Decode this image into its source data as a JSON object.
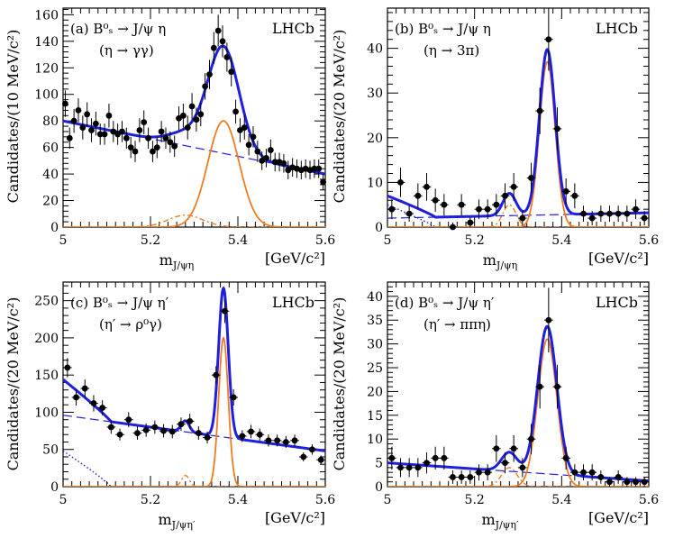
{
  "chart_data": [
    {
      "type": "scatter",
      "panel": "a",
      "tag": "(a)",
      "decay": "B⁰ₛ → J/ψ η",
      "subdecay": "(η → γγ)",
      "experiment": "LHCb",
      "ylabel": "Candidates/(10 MeV/c²)",
      "xlabel": "m_J/ψη",
      "xlabel_main": "m",
      "xlabel_sub": "J/ψη",
      "xunit": "[GeV/c²]",
      "xlim": [
        5.0,
        5.6
      ],
      "ylim": [
        0,
        165
      ],
      "xticks": [
        5,
        5.2,
        5.4,
        5.6
      ],
      "xtick_labels": [
        "5",
        "5.2",
        "5.4",
        "5.6"
      ],
      "yticks": [
        0,
        20,
        40,
        60,
        80,
        100,
        120,
        140,
        160
      ],
      "ytick_labels": [
        "0",
        "20",
        "40",
        "60",
        "80",
        "100",
        "120",
        "140",
        "160"
      ],
      "signal": {
        "mean": 5.367,
        "sigma": 0.036,
        "amp": 80
      },
      "background": {
        "start": 80,
        "end": 40
      },
      "bump": {
        "mean": 5.28,
        "sigma": 0.04,
        "amp": 9
      },
      "points": {
        "x": [
          5.005,
          5.015,
          5.025,
          5.035,
          5.045,
          5.055,
          5.065,
          5.075,
          5.085,
          5.095,
          5.105,
          5.115,
          5.125,
          5.135,
          5.145,
          5.155,
          5.165,
          5.175,
          5.185,
          5.195,
          5.205,
          5.215,
          5.225,
          5.235,
          5.245,
          5.255,
          5.265,
          5.275,
          5.285,
          5.295,
          5.305,
          5.315,
          5.325,
          5.335,
          5.345,
          5.355,
          5.365,
          5.375,
          5.385,
          5.395,
          5.405,
          5.415,
          5.425,
          5.435,
          5.445,
          5.455,
          5.465,
          5.475,
          5.485,
          5.495,
          5.505,
          5.515,
          5.525,
          5.535,
          5.545,
          5.555,
          5.565,
          5.575,
          5.585,
          5.595
        ],
        "y": [
          93,
          67,
          80,
          88,
          75,
          85,
          73,
          78,
          70,
          70,
          84,
          72,
          70,
          72,
          67,
          60,
          57,
          73,
          79,
          67,
          57,
          60,
          72,
          67,
          64,
          61,
          82,
          84,
          75,
          91,
          81,
          85,
          106,
          115,
          135,
          148,
          140,
          128,
          117,
          87,
          73,
          75,
          62,
          68,
          57,
          50,
          52,
          58,
          49,
          49,
          48,
          43,
          45,
          44,
          43,
          44,
          43,
          44,
          44,
          34
        ],
        "err": [
          10,
          8,
          9,
          9,
          9,
          9,
          9,
          9,
          8,
          8,
          9,
          8,
          8,
          8,
          8,
          8,
          8,
          9,
          9,
          8,
          8,
          8,
          8,
          8,
          8,
          8,
          9,
          9,
          9,
          10,
          9,
          9,
          10,
          11,
          12,
          12,
          12,
          11,
          11,
          9,
          9,
          9,
          8,
          8,
          8,
          7,
          7,
          8,
          7,
          7,
          7,
          7,
          7,
          7,
          7,
          7,
          7,
          7,
          7,
          6
        ]
      }
    },
    {
      "type": "scatter",
      "panel": "b",
      "tag": "(b)",
      "decay": "B⁰ₛ → J/ψ η",
      "subdecay": "(η → 3π)",
      "experiment": "LHCb",
      "ylabel": "Candidates/(20 MeV/c²)",
      "xlabel": "m_J/ψη",
      "xlabel_main": "m",
      "xlabel_sub": "J/ψη",
      "xunit": "[GeV/c²]",
      "xlim": [
        5.0,
        5.6
      ],
      "ylim": [
        0,
        49
      ],
      "xticks": [
        5,
        5.2,
        5.4,
        5.6
      ],
      "xtick_labels": [
        "5",
        "5.2",
        "5.4",
        "5.6"
      ],
      "yticks": [
        0,
        10,
        20,
        30,
        40
      ],
      "ytick_labels": [
        "0",
        "10",
        "20",
        "30",
        "40"
      ],
      "signal": {
        "mean": 5.367,
        "sigma": 0.018,
        "amp": 37
      },
      "background": {
        "start": 2.0,
        "end": 3.2
      },
      "bump": {
        "mean": 5.28,
        "sigma": 0.015,
        "amp": 5
      },
      "partial": {
        "amp": 5,
        "slope": 40
      },
      "points": {
        "x": [
          5.01,
          5.03,
          5.05,
          5.07,
          5.09,
          5.11,
          5.13,
          5.15,
          5.17,
          5.19,
          5.21,
          5.23,
          5.25,
          5.27,
          5.29,
          5.31,
          5.33,
          5.35,
          5.37,
          5.39,
          5.41,
          5.43,
          5.45,
          5.47,
          5.49,
          5.51,
          5.53,
          5.55,
          5.57,
          5.59
        ],
        "y": [
          4,
          10,
          3,
          7,
          9,
          6,
          5,
          0,
          5,
          1,
          4,
          4,
          5,
          7,
          9,
          2,
          11,
          26,
          42,
          22,
          8,
          7,
          3,
          2,
          3,
          3,
          3,
          3,
          4,
          2
        ],
        "err": [
          2.2,
          3.3,
          1.8,
          2.8,
          3.1,
          2.6,
          2.4,
          1.0,
          2.4,
          1.2,
          2.2,
          2.2,
          2.4,
          2.8,
          3.1,
          1.6,
          3.4,
          5.2,
          7.0,
          4.8,
          2.9,
          2.8,
          1.8,
          1.6,
          1.8,
          1.8,
          1.8,
          1.8,
          2.2,
          1.6
        ]
      }
    },
    {
      "type": "scatter",
      "panel": "c",
      "tag": "(c)",
      "decay": "B⁰ₛ → J/ψ η′",
      "subdecay": "(η′ → ρ⁰γ)",
      "experiment": "LHCb",
      "ylabel": "Candidates/(20 MeV/c²)",
      "xlabel": "m_J/ψη′",
      "xlabel_main": "m",
      "xlabel_sub": "J/ψη′",
      "xunit": "[GeV/c²]",
      "xlim": [
        5.0,
        5.6
      ],
      "ylim": [
        0,
        275
      ],
      "xticks": [
        5,
        5.2,
        5.4,
        5.6
      ],
      "xtick_labels": [
        "5",
        "5.2",
        "5.4",
        "5.6"
      ],
      "yticks": [
        0,
        50,
        100,
        150,
        200,
        250
      ],
      "ytick_labels": [
        "0",
        "50",
        "100",
        "150",
        "200",
        "250"
      ],
      "signal": {
        "mean": 5.367,
        "sigma": 0.011,
        "amp": 200
      },
      "background": {
        "start": 96,
        "end": 48
      },
      "bump": {
        "mean": 5.28,
        "sigma": 0.009,
        "amp": 15
      },
      "partial": {
        "amp": 48,
        "slope": 15
      },
      "points": {
        "x": [
          5.01,
          5.03,
          5.05,
          5.07,
          5.09,
          5.11,
          5.13,
          5.15,
          5.17,
          5.19,
          5.21,
          5.23,
          5.25,
          5.27,
          5.29,
          5.31,
          5.33,
          5.35,
          5.37,
          5.39,
          5.41,
          5.43,
          5.45,
          5.47,
          5.49,
          5.51,
          5.53,
          5.55,
          5.57,
          5.59
        ],
        "y": [
          160,
          120,
          132,
          112,
          106,
          80,
          70,
          90,
          72,
          76,
          80,
          75,
          74,
          84,
          88,
          72,
          66,
          150,
          236,
          120,
          68,
          74,
          70,
          62,
          62,
          60,
          62,
          40,
          50,
          36
        ],
        "err": [
          13,
          11,
          12,
          11,
          10,
          9,
          8,
          10,
          9,
          9,
          9,
          9,
          9,
          9,
          10,
          9,
          8,
          12,
          16,
          11,
          8,
          9,
          8,
          8,
          8,
          8,
          8,
          6,
          7,
          6
        ]
      }
    },
    {
      "type": "scatter",
      "panel": "d",
      "tag": "(d)",
      "decay": "B⁰ₛ → J/ψ η′",
      "subdecay": "(η′ → ππη)",
      "experiment": "LHCb",
      "ylabel": "Candidates/(20 MeV/c²)",
      "xlabel": "m_J/ψη′",
      "xlabel_main": "m",
      "xlabel_sub": "J/ψη′",
      "xunit": "[GeV/c²]",
      "xlim": [
        5.0,
        5.6
      ],
      "ylim": [
        0,
        43
      ],
      "xticks": [
        5,
        5.2,
        5.4,
        5.6
      ],
      "xtick_labels": [
        "5",
        "5.2",
        "5.4",
        "5.6"
      ],
      "yticks": [
        0,
        5,
        10,
        15,
        20,
        25,
        30,
        35,
        40
      ],
      "ytick_labels": [
        "0",
        "5",
        "10",
        "15",
        "20",
        "25",
        "30",
        "35",
        "40"
      ],
      "signal": {
        "mean": 5.367,
        "sigma": 0.022,
        "amp": 31
      },
      "background": {
        "start": 5.0,
        "end": 1.2
      },
      "bump": {
        "mean": 5.28,
        "sigma": 0.018,
        "amp": 4
      },
      "points": {
        "x": [
          5.01,
          5.03,
          5.05,
          5.07,
          5.09,
          5.11,
          5.13,
          5.15,
          5.17,
          5.19,
          5.21,
          5.23,
          5.25,
          5.27,
          5.29,
          5.31,
          5.33,
          5.35,
          5.37,
          5.39,
          5.41,
          5.43,
          5.45,
          5.47,
          5.49,
          5.51,
          5.53,
          5.55,
          5.57,
          5.59
        ],
        "y": [
          6,
          4,
          4,
          4,
          5,
          6,
          6,
          2,
          2,
          2,
          3,
          3,
          8,
          5,
          8,
          4,
          10,
          21,
          35,
          21,
          6,
          3,
          3,
          3,
          2,
          1,
          2,
          1,
          1,
          1
        ],
        "err": [
          2.4,
          2.0,
          2.0,
          2.0,
          2.2,
          2.4,
          2.4,
          1.4,
          1.4,
          1.4,
          1.7,
          1.7,
          2.8,
          2.2,
          2.8,
          2.0,
          3.2,
          4.6,
          6.8,
          4.6,
          2.4,
          1.7,
          1.7,
          1.7,
          1.4,
          1.0,
          1.4,
          1.0,
          1.0,
          1.0
        ]
      }
    }
  ]
}
